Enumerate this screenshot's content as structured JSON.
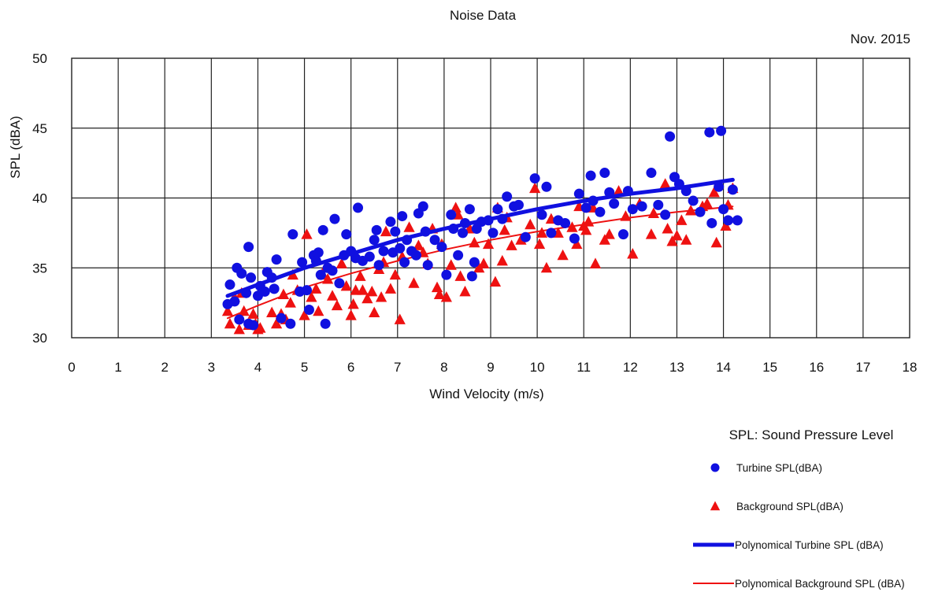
{
  "chart_data": {
    "type": "scatter",
    "title": "Noise Data",
    "date_label": "Nov. 2015",
    "xlabel": "Wind Velocity (m/s)",
    "ylabel": "SPL (dBA)",
    "note": "SPL: Sound Pressure Level",
    "xlim": [
      0,
      18
    ],
    "ylim": [
      30,
      50
    ],
    "x_ticks": [
      "0",
      "1",
      "2",
      "3",
      "4",
      "5",
      "6",
      "7",
      "8",
      "9",
      "10",
      "11",
      "12",
      "13",
      "14",
      "15",
      "16",
      "17",
      "18"
    ],
    "y_ticks": [
      "30",
      "35",
      "40",
      "45",
      "50"
    ],
    "grid": true,
    "legend_position": "bottom-right",
    "series": [
      {
        "name": "Turbine SPL(dBA)",
        "marker": "circle",
        "color": "#1010e0",
        "points": [
          [
            3.35,
            32.4
          ],
          [
            3.4,
            33.8
          ],
          [
            3.5,
            32.6
          ],
          [
            3.55,
            35.0
          ],
          [
            3.6,
            31.3
          ],
          [
            3.65,
            34.6
          ],
          [
            3.75,
            33.2
          ],
          [
            3.8,
            36.5
          ],
          [
            3.8,
            31.0
          ],
          [
            3.85,
            34.3
          ],
          [
            3.9,
            30.9
          ],
          [
            4.0,
            33.0
          ],
          [
            4.05,
            33.7
          ],
          [
            4.15,
            33.3
          ],
          [
            4.2,
            34.7
          ],
          [
            4.3,
            34.3
          ],
          [
            4.35,
            33.5
          ],
          [
            4.4,
            35.6
          ],
          [
            4.5,
            31.4
          ],
          [
            4.7,
            31.0
          ],
          [
            4.75,
            37.4
          ],
          [
            4.9,
            33.3
          ],
          [
            4.95,
            35.4
          ],
          [
            5.05,
            33.4
          ],
          [
            5.1,
            32.0
          ],
          [
            5.2,
            35.9
          ],
          [
            5.25,
            35.5
          ],
          [
            5.3,
            36.1
          ],
          [
            5.35,
            34.5
          ],
          [
            5.4,
            37.7
          ],
          [
            5.45,
            31.0
          ],
          [
            5.5,
            35.0
          ],
          [
            5.6,
            34.8
          ],
          [
            5.65,
            38.5
          ],
          [
            5.75,
            33.9
          ],
          [
            5.85,
            35.9
          ],
          [
            5.9,
            37.4
          ],
          [
            6.0,
            36.2
          ],
          [
            6.1,
            35.7
          ],
          [
            6.15,
            39.3
          ],
          [
            6.25,
            35.5
          ],
          [
            6.4,
            35.8
          ],
          [
            6.5,
            37.0
          ],
          [
            6.55,
            37.7
          ],
          [
            6.6,
            35.2
          ],
          [
            6.7,
            36.2
          ],
          [
            6.85,
            38.3
          ],
          [
            6.9,
            36.1
          ],
          [
            6.95,
            37.6
          ],
          [
            7.05,
            36.4
          ],
          [
            7.1,
            38.7
          ],
          [
            7.15,
            35.4
          ],
          [
            7.2,
            37.0
          ],
          [
            7.3,
            36.2
          ],
          [
            7.4,
            35.9
          ],
          [
            7.45,
            38.9
          ],
          [
            7.55,
            39.4
          ],
          [
            7.6,
            37.6
          ],
          [
            7.65,
            35.2
          ],
          [
            7.8,
            37.0
          ],
          [
            7.95,
            36.5
          ],
          [
            8.05,
            34.5
          ],
          [
            8.15,
            38.8
          ],
          [
            8.2,
            37.8
          ],
          [
            8.3,
            35.9
          ],
          [
            8.4,
            37.5
          ],
          [
            8.45,
            38.2
          ],
          [
            8.55,
            39.2
          ],
          [
            8.6,
            34.4
          ],
          [
            8.65,
            35.4
          ],
          [
            8.7,
            37.8
          ],
          [
            8.8,
            38.3
          ],
          [
            8.95,
            38.4
          ],
          [
            9.05,
            37.5
          ],
          [
            9.15,
            39.2
          ],
          [
            9.25,
            38.5
          ],
          [
            9.35,
            40.1
          ],
          [
            9.5,
            39.4
          ],
          [
            9.6,
            39.5
          ],
          [
            9.75,
            37.2
          ],
          [
            9.95,
            41.4
          ],
          [
            10.1,
            38.8
          ],
          [
            10.2,
            40.8
          ],
          [
            10.3,
            37.5
          ],
          [
            10.45,
            38.4
          ],
          [
            10.6,
            38.2
          ],
          [
            10.8,
            37.1
          ],
          [
            10.9,
            40.3
          ],
          [
            11.05,
            39.3
          ],
          [
            11.15,
            41.6
          ],
          [
            11.2,
            39.8
          ],
          [
            11.35,
            39.0
          ],
          [
            11.45,
            41.8
          ],
          [
            11.55,
            40.4
          ],
          [
            11.65,
            39.6
          ],
          [
            11.85,
            37.4
          ],
          [
            11.95,
            40.5
          ],
          [
            12.05,
            39.2
          ],
          [
            12.25,
            39.4
          ],
          [
            12.45,
            41.8
          ],
          [
            12.6,
            39.5
          ],
          [
            12.75,
            38.8
          ],
          [
            12.85,
            44.4
          ],
          [
            12.95,
            41.5
          ],
          [
            13.05,
            41.0
          ],
          [
            13.2,
            40.5
          ],
          [
            13.35,
            39.8
          ],
          [
            13.5,
            39.0
          ],
          [
            13.7,
            44.7
          ],
          [
            13.75,
            38.2
          ],
          [
            13.9,
            40.8
          ],
          [
            13.95,
            44.8
          ],
          [
            14.0,
            39.2
          ],
          [
            14.1,
            38.4
          ],
          [
            14.2,
            40.6
          ],
          [
            14.3,
            38.4
          ]
        ]
      },
      {
        "name": "Background SPL(dBA)",
        "marker": "triangle",
        "color": "#ee1111",
        "points": [
          [
            3.35,
            31.9
          ],
          [
            3.4,
            31.0
          ],
          [
            3.5,
            32.9
          ],
          [
            3.6,
            30.6
          ],
          [
            3.65,
            33.2
          ],
          [
            3.7,
            31.9
          ],
          [
            3.8,
            30.9
          ],
          [
            3.9,
            31.7
          ],
          [
            3.95,
            31.0
          ],
          [
            4.0,
            30.6
          ],
          [
            4.05,
            30.7
          ],
          [
            4.3,
            31.8
          ],
          [
            4.4,
            31.0
          ],
          [
            4.5,
            31.7
          ],
          [
            4.55,
            33.1
          ],
          [
            4.6,
            31.3
          ],
          [
            4.7,
            32.5
          ],
          [
            4.75,
            34.5
          ],
          [
            4.85,
            33.4
          ],
          [
            5.0,
            31.6
          ],
          [
            5.05,
            37.4
          ],
          [
            5.15,
            32.9
          ],
          [
            5.25,
            33.5
          ],
          [
            5.3,
            31.9
          ],
          [
            5.4,
            34.5
          ],
          [
            5.45,
            35.0
          ],
          [
            5.5,
            34.2
          ],
          [
            5.6,
            33.0
          ],
          [
            5.7,
            32.3
          ],
          [
            5.8,
            35.3
          ],
          [
            5.9,
            33.7
          ],
          [
            6.0,
            31.6
          ],
          [
            6.05,
            32.4
          ],
          [
            6.1,
            33.4
          ],
          [
            6.2,
            34.4
          ],
          [
            6.25,
            33.4
          ],
          [
            6.35,
            32.8
          ],
          [
            6.45,
            33.3
          ],
          [
            6.5,
            31.8
          ],
          [
            6.6,
            34.9
          ],
          [
            6.65,
            32.9
          ],
          [
            6.7,
            35.4
          ],
          [
            6.75,
            37.6
          ],
          [
            6.85,
            33.5
          ],
          [
            6.95,
            34.5
          ],
          [
            7.05,
            31.3
          ],
          [
            7.1,
            35.8
          ],
          [
            7.25,
            37.9
          ],
          [
            7.35,
            33.9
          ],
          [
            7.45,
            36.6
          ],
          [
            7.55,
            36.1
          ],
          [
            7.65,
            35.3
          ],
          [
            7.75,
            37.8
          ],
          [
            7.85,
            33.6
          ],
          [
            7.9,
            33.1
          ],
          [
            7.95,
            36.7
          ],
          [
            8.05,
            32.9
          ],
          [
            8.15,
            35.2
          ],
          [
            8.25,
            39.3
          ],
          [
            8.3,
            38.8
          ],
          [
            8.35,
            34.4
          ],
          [
            8.45,
            33.3
          ],
          [
            8.55,
            37.8
          ],
          [
            8.65,
            36.8
          ],
          [
            8.75,
            35.0
          ],
          [
            8.85,
            35.3
          ],
          [
            8.95,
            36.7
          ],
          [
            9.1,
            34.0
          ],
          [
            9.15,
            39.3
          ],
          [
            9.25,
            35.5
          ],
          [
            9.3,
            37.7
          ],
          [
            9.35,
            38.6
          ],
          [
            9.45,
            36.6
          ],
          [
            9.65,
            37.0
          ],
          [
            9.85,
            38.1
          ],
          [
            9.95,
            40.7
          ],
          [
            10.05,
            36.7
          ],
          [
            10.1,
            37.5
          ],
          [
            10.2,
            35.0
          ],
          [
            10.3,
            38.5
          ],
          [
            10.45,
            37.5
          ],
          [
            10.55,
            35.9
          ],
          [
            10.75,
            37.9
          ],
          [
            10.85,
            36.7
          ],
          [
            10.9,
            39.4
          ],
          [
            11.0,
            38.0
          ],
          [
            11.05,
            37.7
          ],
          [
            11.1,
            38.3
          ],
          [
            11.2,
            39.3
          ],
          [
            11.25,
            35.3
          ],
          [
            11.45,
            37.0
          ],
          [
            11.55,
            37.4
          ],
          [
            11.75,
            40.5
          ],
          [
            11.9,
            38.7
          ],
          [
            12.05,
            36.0
          ],
          [
            12.2,
            39.6
          ],
          [
            12.45,
            37.4
          ],
          [
            12.5,
            38.9
          ],
          [
            12.75,
            41.0
          ],
          [
            12.8,
            37.8
          ],
          [
            12.9,
            36.9
          ],
          [
            13.0,
            37.3
          ],
          [
            13.1,
            38.4
          ],
          [
            13.2,
            37.0
          ],
          [
            13.3,
            39.1
          ],
          [
            13.55,
            39.4
          ],
          [
            13.65,
            39.6
          ],
          [
            13.8,
            40.4
          ],
          [
            13.85,
            36.8
          ],
          [
            14.05,
            38.0
          ],
          [
            14.1,
            39.5
          ],
          [
            14.2,
            40.7
          ]
        ]
      },
      {
        "name": "Polynomical Turbine SPL (dBA)",
        "marker": "line-thick",
        "color": "#1010e0",
        "points": [
          [
            3.35,
            33.0
          ],
          [
            4,
            33.8
          ],
          [
            5,
            35.0
          ],
          [
            6,
            36.0
          ],
          [
            7,
            37.0
          ],
          [
            8,
            37.8
          ],
          [
            9,
            38.5
          ],
          [
            10,
            39.2
          ],
          [
            11,
            39.8
          ],
          [
            12,
            40.3
          ],
          [
            13,
            40.7
          ],
          [
            14.2,
            41.3
          ]
        ]
      },
      {
        "name": "Polynomical Background SPL (dBA)",
        "marker": "line-thin",
        "color": "#ee1111",
        "points": [
          [
            3.35,
            31.4
          ],
          [
            4,
            32.3
          ],
          [
            5,
            33.6
          ],
          [
            6,
            34.6
          ],
          [
            7,
            35.5
          ],
          [
            8,
            36.3
          ],
          [
            9,
            37.0
          ],
          [
            10,
            37.6
          ],
          [
            11,
            38.1
          ],
          [
            12,
            38.6
          ],
          [
            13,
            39.0
          ],
          [
            14.2,
            39.4
          ]
        ]
      }
    ]
  }
}
